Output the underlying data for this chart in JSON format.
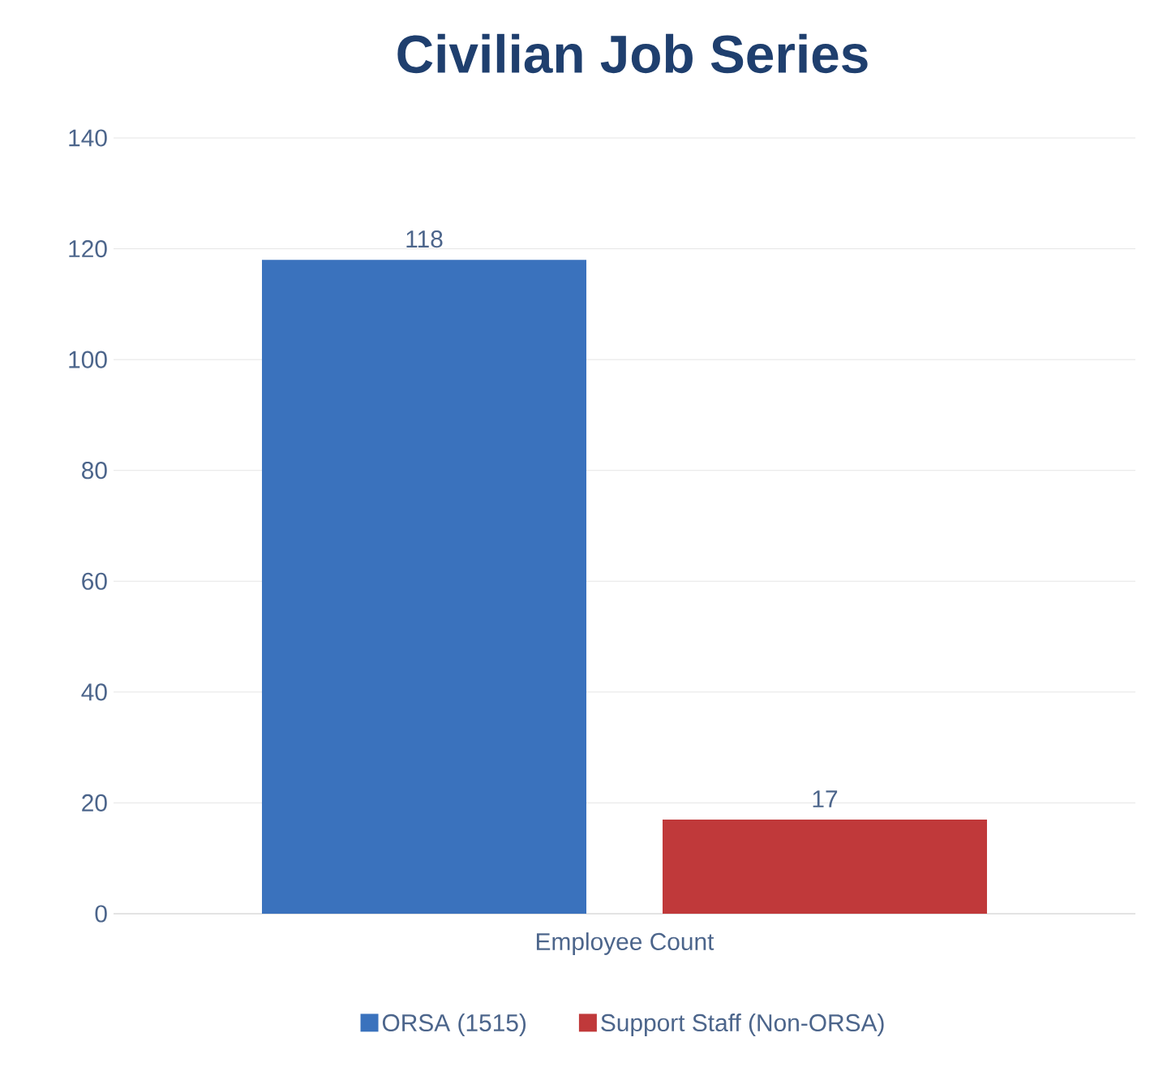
{
  "chart_data": {
    "type": "bar",
    "title": "Civilian Job Series",
    "categories": [
      "Employee Count"
    ],
    "series": [
      {
        "name": "ORSA (1515)",
        "color": "#3a72bd",
        "values": [
          118
        ]
      },
      {
        "name": "Support Staff (Non-ORSA)",
        "color": "#c0393a",
        "values": [
          17
        ]
      }
    ],
    "ylim": [
      0,
      140
    ],
    "yticks": [
      0,
      20,
      40,
      60,
      80,
      100,
      120,
      140
    ],
    "grid": "y",
    "legend": "bottom",
    "data_labels": true
  }
}
